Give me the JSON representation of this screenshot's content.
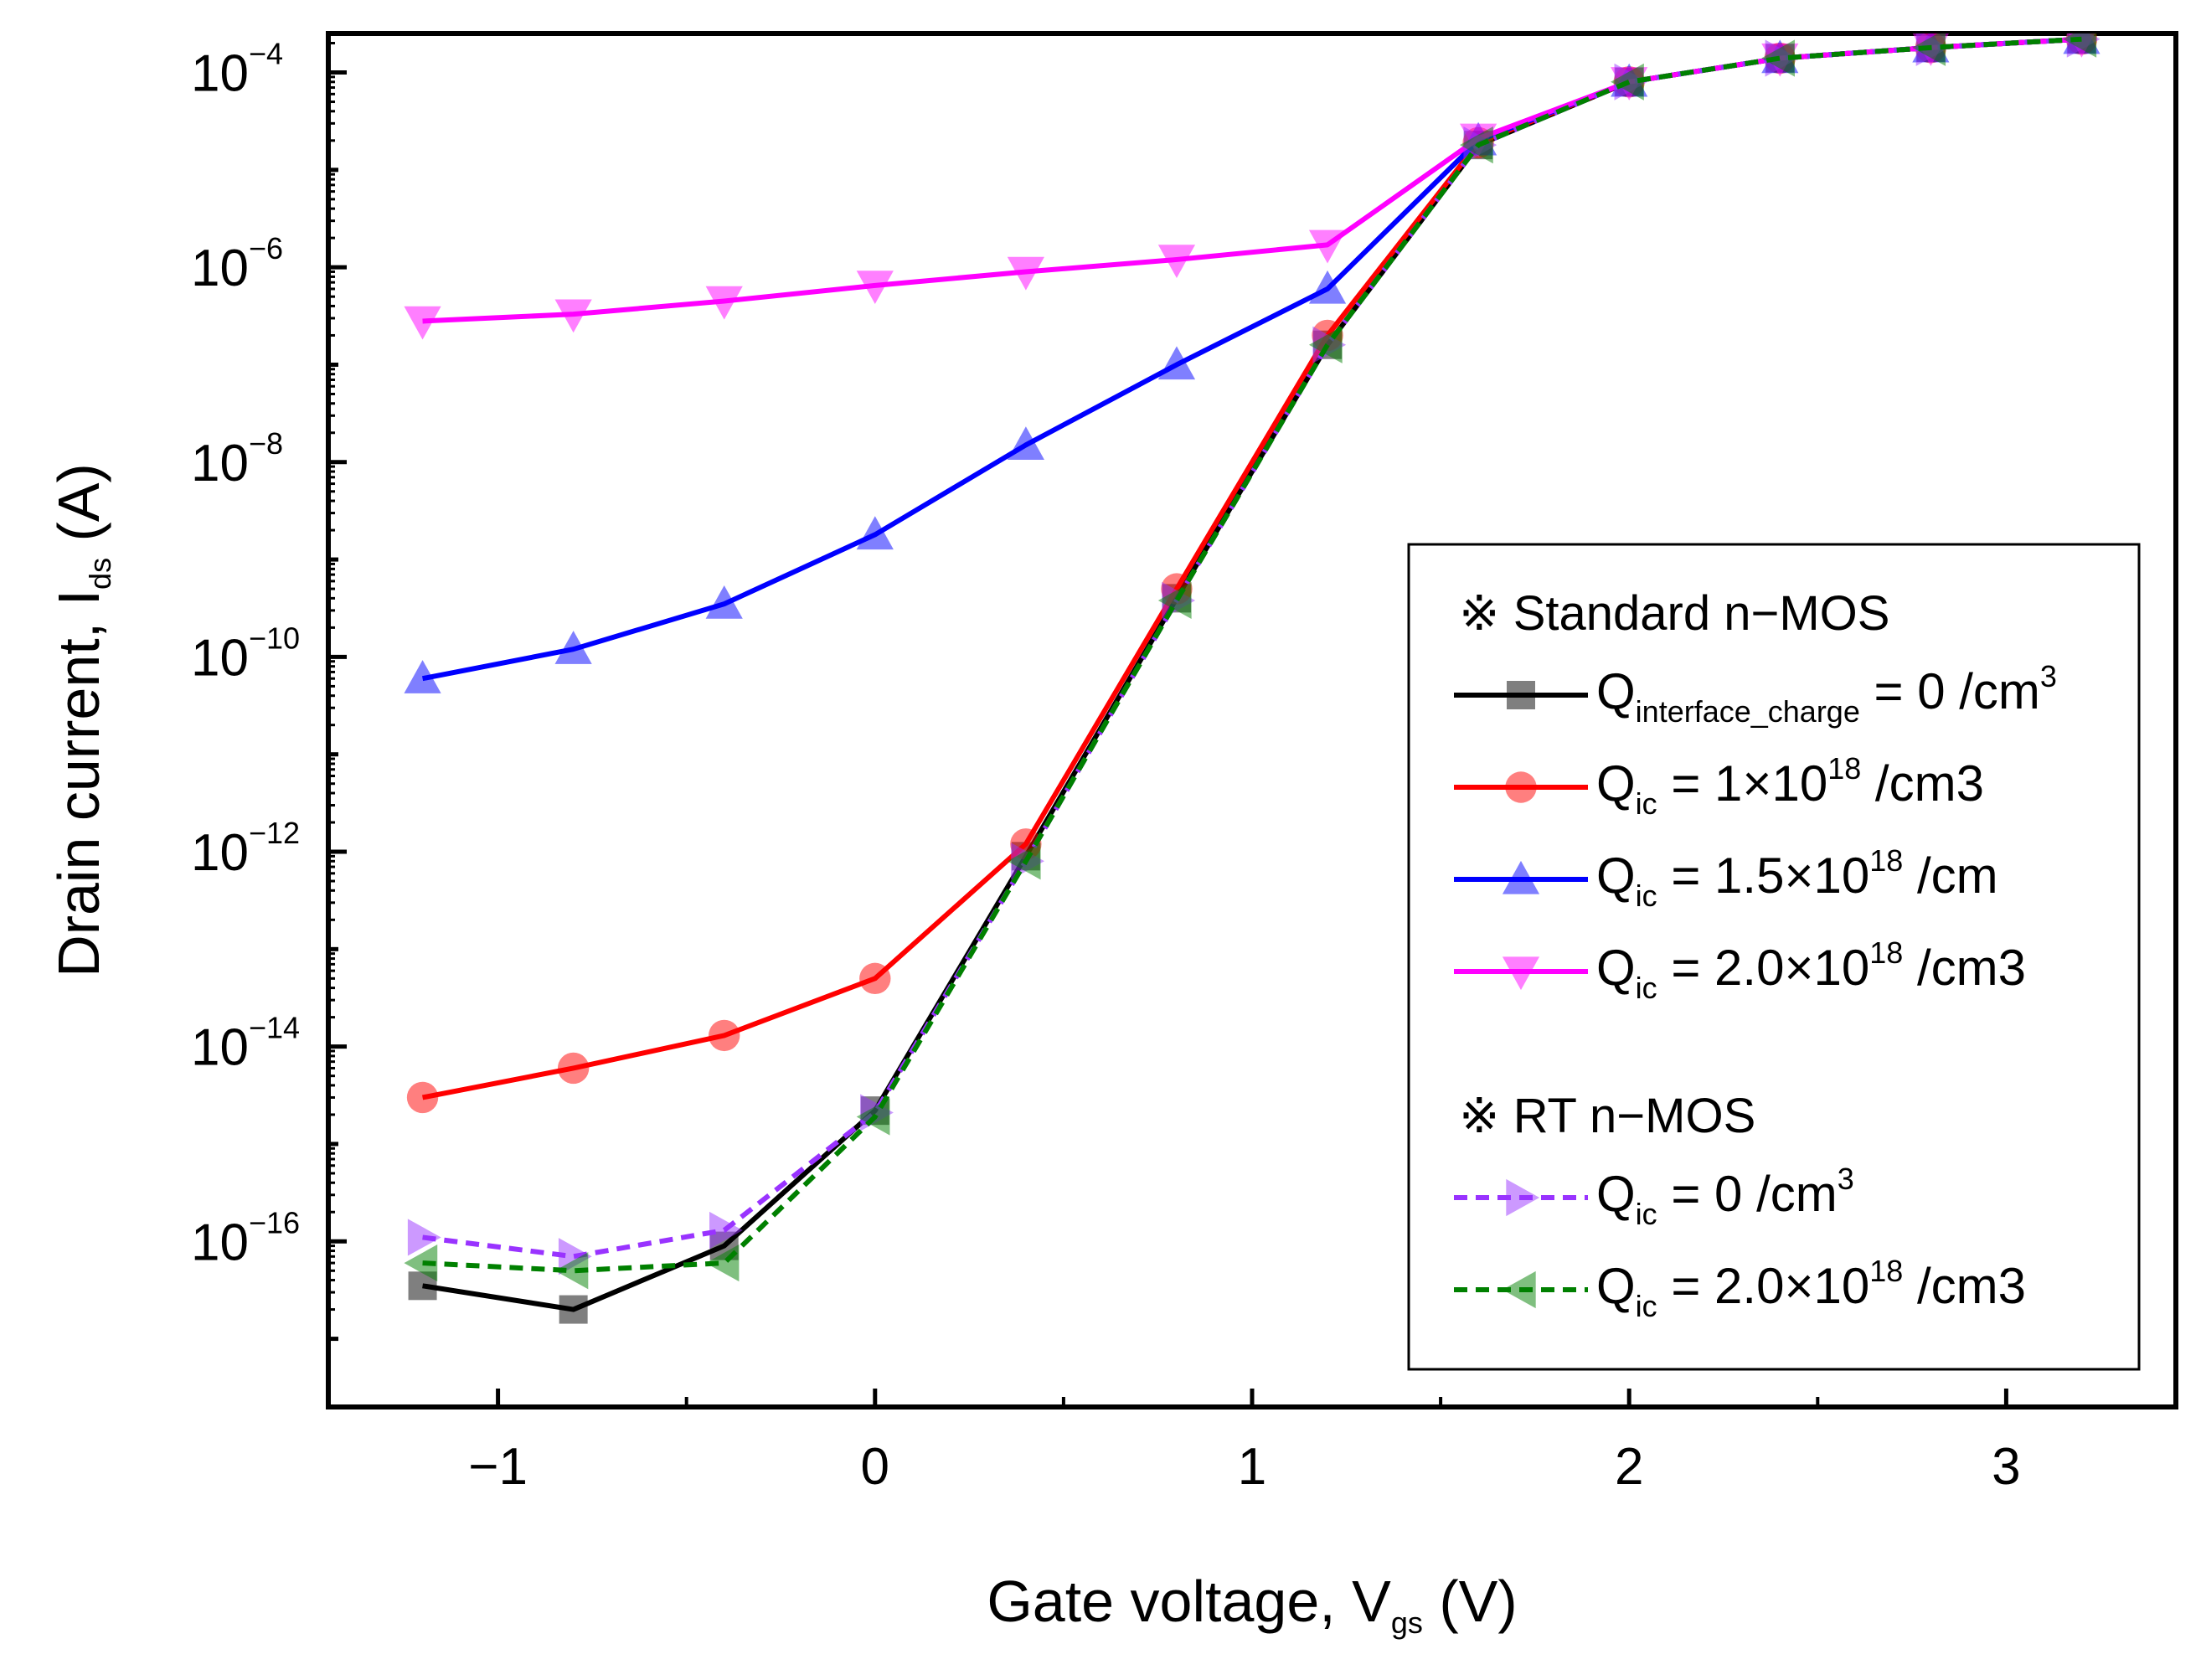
{
  "chart_data": {
    "type": "line",
    "yscale": "log",
    "xlabel": {
      "main": "Gate voltage, V",
      "sub": "gs",
      "unit": " (V)"
    },
    "ylabel": {
      "main": "Drain current, I",
      "sub": "ds",
      "unit": " (A)"
    },
    "xlim": [
      -1.45,
      3.45
    ],
    "ylim_exp": [
      -17.7,
      -3.6
    ],
    "x_ticks": [
      {
        "value": -1,
        "label": "−1"
      },
      {
        "value": 0,
        "label": "0"
      },
      {
        "value": 1,
        "label": "1"
      },
      {
        "value": 2,
        "label": "2"
      },
      {
        "value": 3,
        "label": "3"
      }
    ],
    "y_ticks": [
      {
        "exp": -4,
        "base": "10",
        "power": "−4"
      },
      {
        "exp": -6,
        "base": "10",
        "power": "−6"
      },
      {
        "exp": -8,
        "base": "10",
        "power": "−8"
      },
      {
        "exp": -10,
        "base": "10",
        "power": "−10"
      },
      {
        "exp": -12,
        "base": "10",
        "power": "−12"
      },
      {
        "exp": -14,
        "base": "10",
        "power": "−14"
      },
      {
        "exp": -16,
        "base": "10",
        "power": "−16"
      }
    ],
    "x": [
      -1.2,
      -0.8,
      -0.4,
      0.0,
      0.4,
      0.8,
      1.2,
      1.6,
      2.0,
      2.4,
      2.8,
      3.2
    ],
    "series": [
      {
        "name": "Q_interface_charge = 0 /cm3",
        "color": "#000000",
        "marker": "square",
        "dashed": false,
        "values": [
          3.5e-17,
          2e-17,
          9e-17,
          2.2e-15,
          9e-13,
          4e-10,
          1.6e-07,
          1.8e-05,
          8e-05,
          0.00014,
          0.00018,
          0.00022
        ]
      },
      {
        "name": "Q_ic = 1x10^18 /cm3",
        "color": "#ff0000",
        "marker": "circle",
        "dashed": false,
        "values": [
          3e-15,
          6e-15,
          1.3e-14,
          5e-14,
          1.2e-12,
          5e-10,
          2e-07,
          1.9e-05,
          8e-05,
          0.00014,
          0.00018,
          0.00022
        ]
      },
      {
        "name": "Q_ic = 1.5x10^18 /cm",
        "color": "#0000ff",
        "marker": "triangle-up",
        "dashed": false,
        "values": [
          6e-11,
          1.2e-10,
          3.5e-10,
          1.8e-09,
          1.5e-08,
          1e-07,
          6e-07,
          2e-05,
          8e-05,
          0.00014,
          0.00018,
          0.00022
        ]
      },
      {
        "name": "Q_ic = 2.0x10^18 /cm3",
        "color": "#ff00ff",
        "marker": "triangle-down",
        "dashed": false,
        "values": [
          2.8e-07,
          3.3e-07,
          4.5e-07,
          6.5e-07,
          9e-07,
          1.2e-06,
          1.7e-06,
          2.1e-05,
          8e-05,
          0.00014,
          0.00018,
          0.00022
        ]
      },
      {
        "name": "RT Q_ic = 0 /cm3",
        "color": "#9933ff",
        "marker": "triangle-right",
        "dashed": true,
        "values": [
          1.1e-16,
          7e-17,
          1.3e-16,
          2.1e-15,
          8e-13,
          3.8e-10,
          1.6e-07,
          1.8e-05,
          8e-05,
          0.00014,
          0.00018,
          0.00022
        ]
      },
      {
        "name": "RT Q_ic = 2.0x10^18 /cm3",
        "color": "#008000",
        "marker": "triangle-left",
        "dashed": true,
        "values": [
          6e-17,
          5e-17,
          6e-17,
          1.9e-15,
          8e-13,
          3.8e-10,
          1.6e-07,
          1.8e-05,
          8e-05,
          0.00014,
          0.00018,
          0.00022
        ]
      }
    ],
    "legend": {
      "position": "right",
      "heading_standard": "※ Standard n−MOS",
      "heading_rt": "※ RT n−MOS",
      "entries": [
        {
          "q": "Q",
          "sub": "interface_charge",
          "eq": " = 0 /cm",
          "sup": "3",
          "tail": ""
        },
        {
          "q": "Q",
          "sub": "ic",
          "eq": " = 1×10",
          "sup": "18",
          "tail": " /cm3"
        },
        {
          "q": "Q",
          "sub": "ic",
          "eq": " = 1.5×10",
          "sup": "18",
          "tail": " /cm"
        },
        {
          "q": "Q",
          "sub": "ic",
          "eq": " = 2.0×10",
          "sup": "18",
          "tail": " /cm3"
        },
        {
          "q": "Q",
          "sub": "ic",
          "eq": " = 0 /cm",
          "sup": "3",
          "tail": ""
        },
        {
          "q": "Q",
          "sub": "ic",
          "eq": " = 2.0×10",
          "sup": "18",
          "tail": " /cm3"
        }
      ]
    }
  }
}
